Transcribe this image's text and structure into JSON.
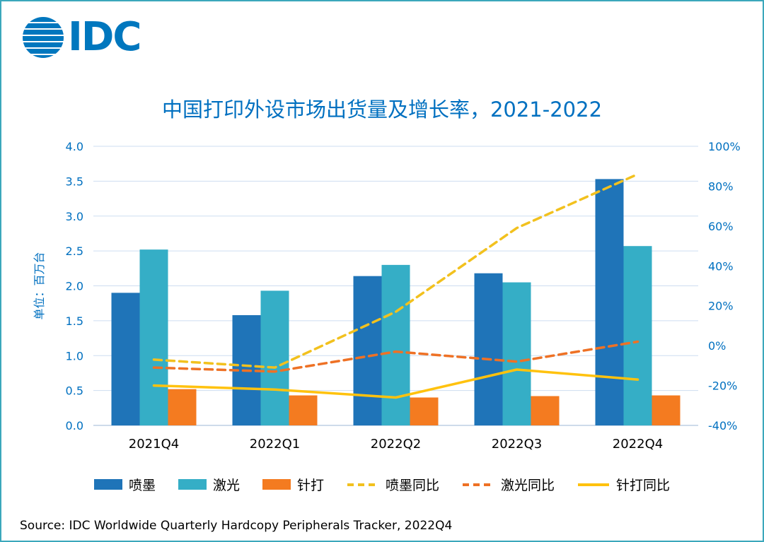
{
  "logo": {
    "text": "IDC"
  },
  "title": "中国打印外设市场出货量及增长率，2021-2022",
  "source": "Source:  IDC Worldwide Quarterly Hardcopy Peripherals Tracker, 2022Q4",
  "colors": {
    "accent_blue": "#0070C0",
    "border_teal": "#3BA8BC",
    "grid": "#CDDDF0",
    "axis_line": "#9CB7D6",
    "axis_text": "#0070C0",
    "category_text": "#000000",
    "logo_blue": "#0077BE"
  },
  "chart_data": {
    "type": "combo_bar_line",
    "title": "中国打印外设市场出货量及增长率，2021-2022",
    "categories": [
      "2021Q4",
      "2022Q1",
      "2022Q2",
      "2022Q3",
      "2022Q4"
    ],
    "bar_series": [
      {
        "name": "喷墨",
        "color": "#1F74B8",
        "values": [
          1.9,
          1.58,
          2.14,
          2.18,
          3.53
        ]
      },
      {
        "name": "激光",
        "color": "#35AEC6",
        "values": [
          2.52,
          1.93,
          2.3,
          2.05,
          2.57
        ]
      },
      {
        "name": "针打",
        "color": "#F47B20",
        "values": [
          0.52,
          0.43,
          0.4,
          0.42,
          0.43
        ]
      }
    ],
    "line_series": [
      {
        "name": "喷墨同比",
        "color": "#F2C11E",
        "style": "dashed",
        "values": [
          -7,
          -11,
          17,
          59,
          86
        ]
      },
      {
        "name": "激光同比",
        "color": "#EE7125",
        "style": "dashed",
        "values": [
          -11,
          -13,
          -3,
          -8,
          2
        ]
      },
      {
        "name": "针打同比",
        "color": "#FFC20E",
        "style": "solid",
        "values": [
          -20,
          -22,
          -26,
          -12,
          -17
        ]
      }
    ],
    "left_axis": {
      "label": "单位：百万台",
      "min": 0,
      "max": 4,
      "step": 0.5
    },
    "right_axis": {
      "min": -40,
      "max": 100,
      "step": 20,
      "unit": "%"
    },
    "grid": true,
    "legend_position": "bottom"
  }
}
